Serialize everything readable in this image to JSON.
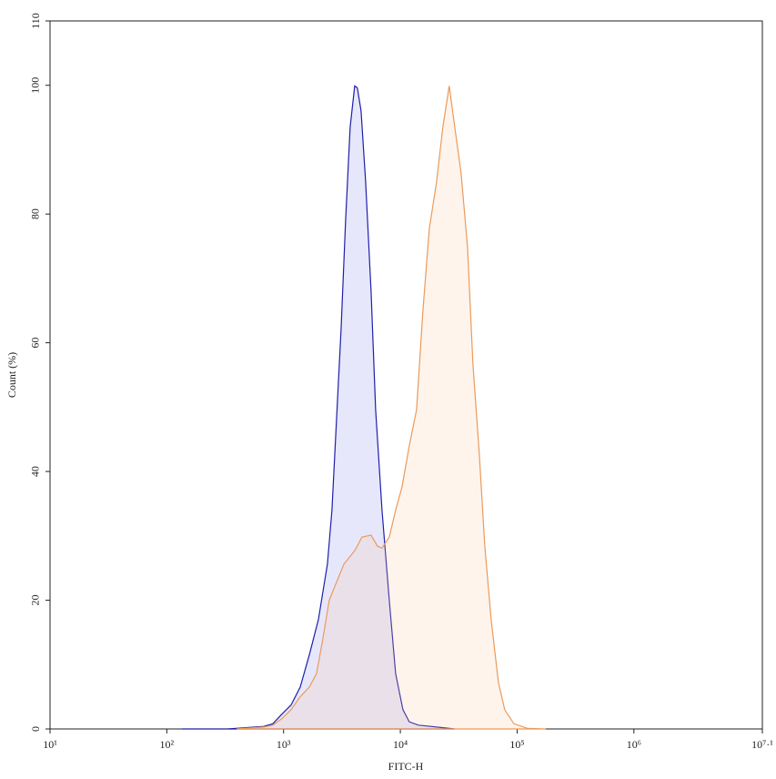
{
  "chart_data": {
    "type": "area",
    "x_label": "FITC-H",
    "y_label": "Count (%)",
    "xscale": "log",
    "xlim": [
      10,
      12589254
    ],
    "ylim": [
      0,
      110
    ],
    "xticks": [
      {
        "value": 10,
        "label": "10¹"
      },
      {
        "value": 100,
        "label": "10²"
      },
      {
        "value": 1000,
        "label": "10³"
      },
      {
        "value": 10000,
        "label": "10⁴"
      },
      {
        "value": 100000,
        "label": "10⁵"
      },
      {
        "value": 1000000,
        "label": "10⁶"
      },
      {
        "value": 12589254,
        "label": "10⁷·¹"
      }
    ],
    "yticks": [
      0,
      20,
      40,
      60,
      80,
      100,
      110
    ],
    "series": [
      {
        "color": "#1f1fa8",
        "fill": "rgba(120,120,240,0.18)",
        "x": [
          135,
          330,
          676,
          809,
          968,
          1159,
          1387,
          1660,
          1987,
          2374,
          2596,
          2838,
          3105,
          3397,
          3715,
          4064,
          4285,
          4611,
          5040,
          5610,
          6138,
          6966,
          8036,
          9116,
          10520,
          11920,
          14260,
          20420,
          29240
        ],
        "values": [
          0,
          0,
          0.4,
          0.8,
          2.3,
          3.7,
          6.5,
          11.5,
          17,
          25.6,
          34,
          48,
          62,
          79,
          93.5,
          99.9,
          99.6,
          96,
          85,
          68,
          49.6,
          34,
          20,
          8.6,
          3,
          1.1,
          0.6,
          0.3,
          0
        ]
      },
      {
        "color": "#eb9a5a",
        "fill": "rgba(250,200,160,0.2)",
        "x": [
          395,
          676,
          809,
          968,
          1159,
          1387,
          1660,
          1915,
          2169,
          2460,
          2838,
          3282,
          4064,
          4691,
          5610,
          6366,
          6966,
          8036,
          9116,
          10330,
          11920,
          13770,
          15610,
          17700,
          20420,
          23130,
          26230,
          29240,
          33110,
          37580,
          41880,
          47460,
          52810,
          59870,
          69180,
          78340,
          93790,
          122600,
          175800
        ],
        "values": [
          0,
          0.3,
          0.6,
          1.6,
          3,
          5,
          6.5,
          8.6,
          14,
          20,
          22.8,
          25.6,
          27.7,
          29.8,
          30.1,
          28.4,
          28.1,
          29.8,
          34,
          37.6,
          44,
          49.6,
          65,
          77.7,
          85,
          93.5,
          99.9,
          93.5,
          86.4,
          74.9,
          56.6,
          42.6,
          28.4,
          17.1,
          7.2,
          3,
          0.8,
          0.1,
          0
        ]
      }
    ]
  }
}
